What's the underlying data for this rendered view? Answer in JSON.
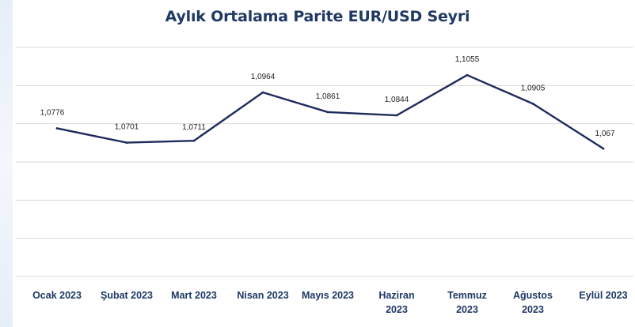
{
  "chart_data": {
    "type": "line",
    "title": "Aylık Ortalama Parite EUR/USD Seyri",
    "categories": [
      [
        "Ocak 2023"
      ],
      [
        "Şubat 2023"
      ],
      [
        "Mart 2023"
      ],
      [
        "Nisan 2023"
      ],
      [
        "Mayıs 2023"
      ],
      [
        "Haziran",
        "2023"
      ],
      [
        "Temmuz",
        "2023"
      ],
      [
        "Ağustos",
        "2023"
      ],
      [
        "Eylül 2023"
      ]
    ],
    "values": [
      1.0776,
      1.0701,
      1.0711,
      1.0964,
      1.0861,
      1.0844,
      1.1055,
      1.0905,
      1.067
    ],
    "data_labels": [
      "1,0776",
      "1,0701",
      "1,0711",
      "1,0964",
      "1,0861",
      "1,0844",
      "1,1055",
      "1,0905",
      "1,067"
    ],
    "ylim": [
      1.0,
      1.12
    ],
    "grid": true,
    "legend": "none",
    "series_color": "#1f2a5c",
    "grid_color": "#d9d9d9",
    "title_color": "#1f3864"
  }
}
